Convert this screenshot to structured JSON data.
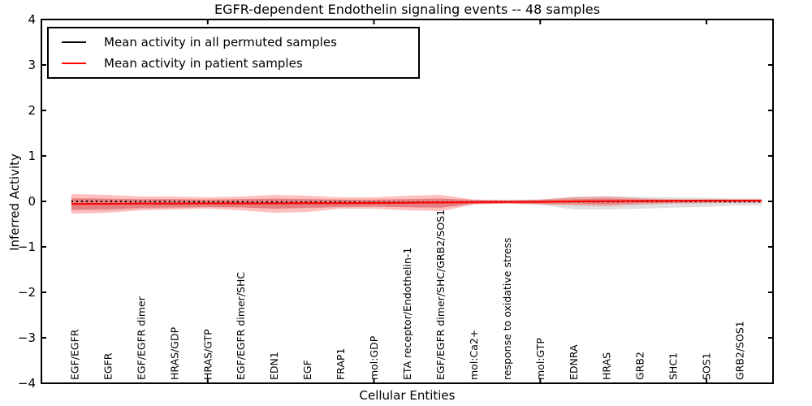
{
  "title": "EGFR-dependent Endothelin signaling events -- 48 samples",
  "axes": {
    "ylabel": "Inferred Activity",
    "xlabel": "Cellular Entities"
  },
  "legend": {
    "items": [
      {
        "label": "Mean activity in all permuted samples",
        "color": "#000000"
      },
      {
        "label": "Mean activity in patient samples",
        "color": "#ff0000"
      }
    ]
  },
  "chart_data": {
    "type": "line",
    "title": "EGFR-dependent Endothelin signaling events -- 48 samples",
    "xlabel": "Cellular Entities",
    "ylabel": "Inferred Activity",
    "ylim": [
      -4,
      4
    ],
    "yticks": [
      4,
      3,
      2,
      1,
      0,
      -1,
      -2,
      -3,
      -4
    ],
    "yticklabels": [
      "4",
      "3",
      "2",
      "1",
      "0",
      "−1",
      "−2",
      "−3",
      "−4"
    ],
    "xticks_unlabeled": [
      5,
      10,
      15,
      20
    ],
    "grid": false,
    "legend_position": "upper left",
    "categories": [
      "EGF/EGFR",
      "EGFR",
      "EGF/EGFR dimer",
      "HRAS/GDP",
      "HRAS/GTP",
      "EGF/EGFR dimer/SHC",
      "EDN1",
      "EGF",
      "FRAP1",
      "mol:GDP",
      "ETA receptor/Endothelin-1",
      "EGF/EGFR dimer/SHC/GRB2/SOS1",
      "mol:Ca2+",
      "response to oxidative stress",
      "mol:GTP",
      "EDNRA",
      "HRAS",
      "GRB2",
      "SHC1",
      "SOS1",
      "GRB2/SOS1"
    ],
    "series": [
      {
        "name": "Mean activity in all permuted samples",
        "color": "#000000",
        "style": "dotted",
        "values": [
          0.0,
          0.0,
          -0.005,
          -0.005,
          -0.01,
          -0.01,
          -0.01,
          -0.015,
          -0.015,
          -0.02,
          -0.02,
          -0.02,
          -0.015,
          -0.01,
          -0.01,
          -0.005,
          -0.005,
          0.0,
          0.0,
          0.0,
          -0.005
        ]
      },
      {
        "name": "Mean activity in patient samples",
        "color": "#ff0000",
        "style": "solid",
        "values": [
          -0.055,
          -0.054,
          -0.05,
          -0.05,
          -0.045,
          -0.045,
          -0.045,
          -0.04,
          -0.04,
          -0.035,
          -0.03,
          -0.025,
          -0.02,
          -0.015,
          -0.01,
          0.0,
          0.005,
          0.01,
          0.015,
          0.02,
          0.02
        ]
      }
    ],
    "bands": [
      {
        "name": "permuted-samples-std-band",
        "color": "#999999",
        "alpha": 0.3,
        "upper": [
          0.054,
          0.05,
          0.04,
          0.05,
          0.04,
          0.05,
          0.06,
          0.05,
          0.04,
          0.04,
          0.05,
          0.06,
          0.03,
          0.03,
          0.04,
          0.107,
          0.11,
          0.1,
          0.09,
          0.08,
          0.06
        ],
        "lower": [
          -0.196,
          -0.2,
          -0.16,
          -0.15,
          -0.13,
          -0.14,
          -0.16,
          -0.15,
          -0.13,
          -0.12,
          -0.13,
          -0.14,
          -0.06,
          -0.05,
          -0.07,
          -0.179,
          -0.18,
          -0.16,
          -0.14,
          -0.12,
          -0.09
        ]
      },
      {
        "name": "patient-samples-outer-band",
        "color": "#ff0000",
        "alpha": 0.25,
        "upper": [
          0.161,
          0.143,
          0.107,
          0.107,
          0.089,
          0.107,
          0.143,
          0.125,
          0.089,
          0.089,
          0.125,
          0.143,
          0.04,
          0.025,
          0.04,
          0.089,
          0.107,
          0.07,
          0.05,
          0.04,
          0.03
        ],
        "lower": [
          -0.268,
          -0.25,
          -0.196,
          -0.179,
          -0.161,
          -0.196,
          -0.25,
          -0.232,
          -0.161,
          -0.161,
          -0.196,
          -0.214,
          -0.07,
          -0.05,
          -0.07,
          -0.089,
          -0.107,
          -0.07,
          -0.05,
          -0.04,
          -0.03
        ]
      },
      {
        "name": "patient-samples-inner-band",
        "color": "#e03030",
        "alpha": 0.35,
        "upper": [
          0.071,
          0.06,
          0.05,
          0.05,
          0.04,
          0.05,
          0.06,
          0.05,
          0.04,
          0.04,
          0.05,
          0.06,
          0.03,
          0.02,
          0.03,
          0.05,
          0.06,
          0.04,
          0.03,
          0.025,
          0.02
        ],
        "lower": [
          -0.179,
          -0.17,
          -0.14,
          -0.13,
          -0.12,
          -0.13,
          -0.16,
          -0.14,
          -0.12,
          -0.11,
          -0.13,
          -0.14,
          -0.05,
          -0.04,
          -0.05,
          -0.05,
          -0.06,
          -0.04,
          -0.03,
          -0.025,
          -0.02
        ]
      }
    ]
  }
}
